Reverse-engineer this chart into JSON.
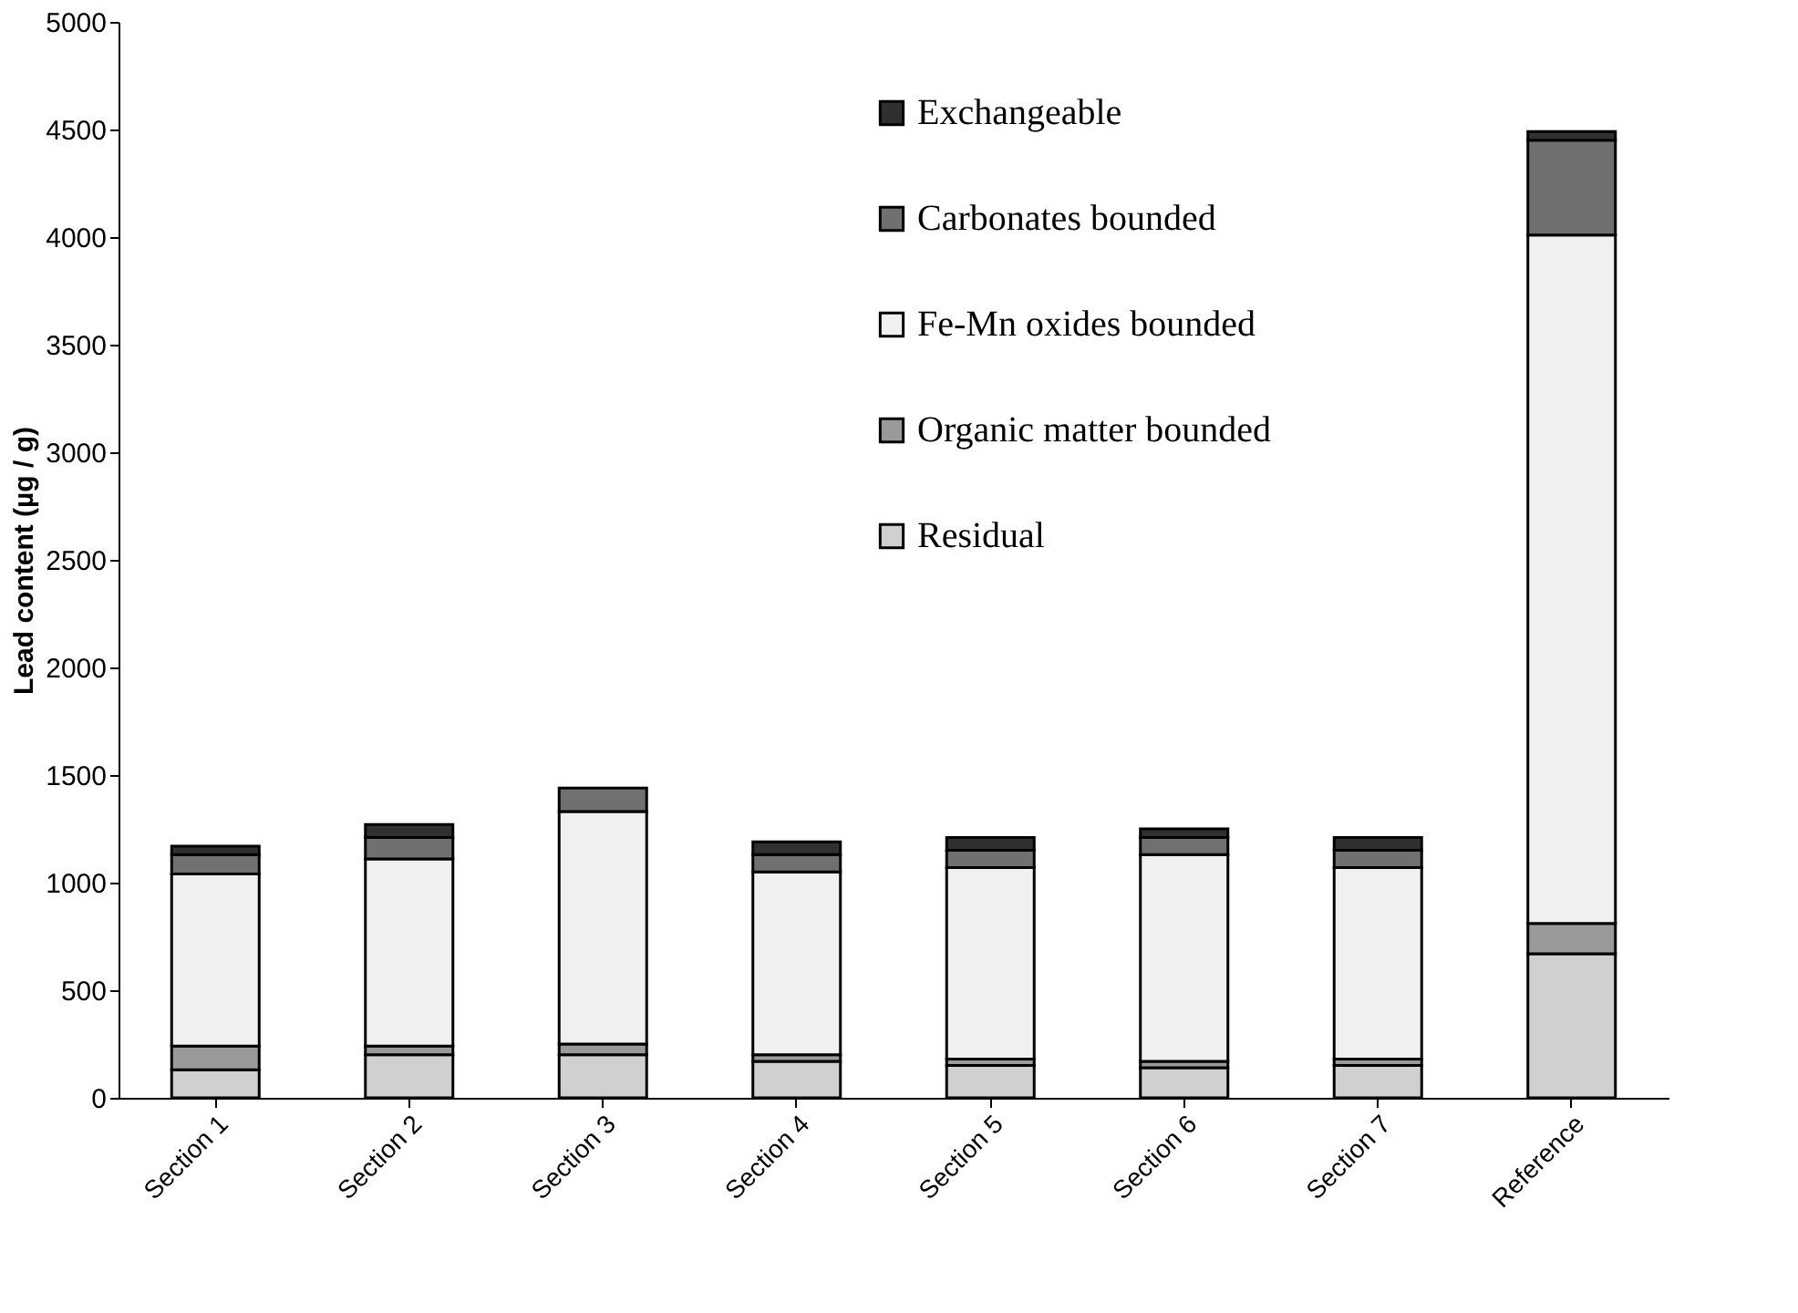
{
  "chart_data": {
    "type": "bar",
    "stacked": true,
    "ylabel": "Lead content (µg / g)",
    "categories": [
      "Section 1",
      "Section 2",
      "Section 3",
      "Section 4",
      "Section 5",
      "Section 6",
      "Section 7",
      "Reference"
    ],
    "series": [
      {
        "name": "Residual",
        "color": "#d0d0d0",
        "values": [
          130,
          200,
          200,
          170,
          150,
          140,
          150,
          670
        ]
      },
      {
        "name": "Organic matter bounded",
        "color": "#9a9a9a",
        "values": [
          110,
          40,
          50,
          30,
          30,
          30,
          30,
          140
        ]
      },
      {
        "name": "Fe-Mn oxides bounded",
        "color": "#f0f0f0",
        "values": [
          800,
          870,
          1080,
          850,
          890,
          960,
          890,
          3200
        ]
      },
      {
        "name": "Carbonates bounded",
        "color": "#707070",
        "values": [
          90,
          100,
          110,
          80,
          80,
          80,
          80,
          440
        ]
      },
      {
        "name": "Exchangeable",
        "color": "#303030",
        "values": [
          40,
          60,
          null,
          60,
          60,
          40,
          60,
          40
        ]
      }
    ],
    "ylim": [
      0,
      5000
    ],
    "yticks": [
      0,
      500,
      1000,
      1500,
      2000,
      2500,
      3000,
      3500,
      4000,
      4500,
      5000
    ],
    "grid": false,
    "legend": "top right"
  }
}
